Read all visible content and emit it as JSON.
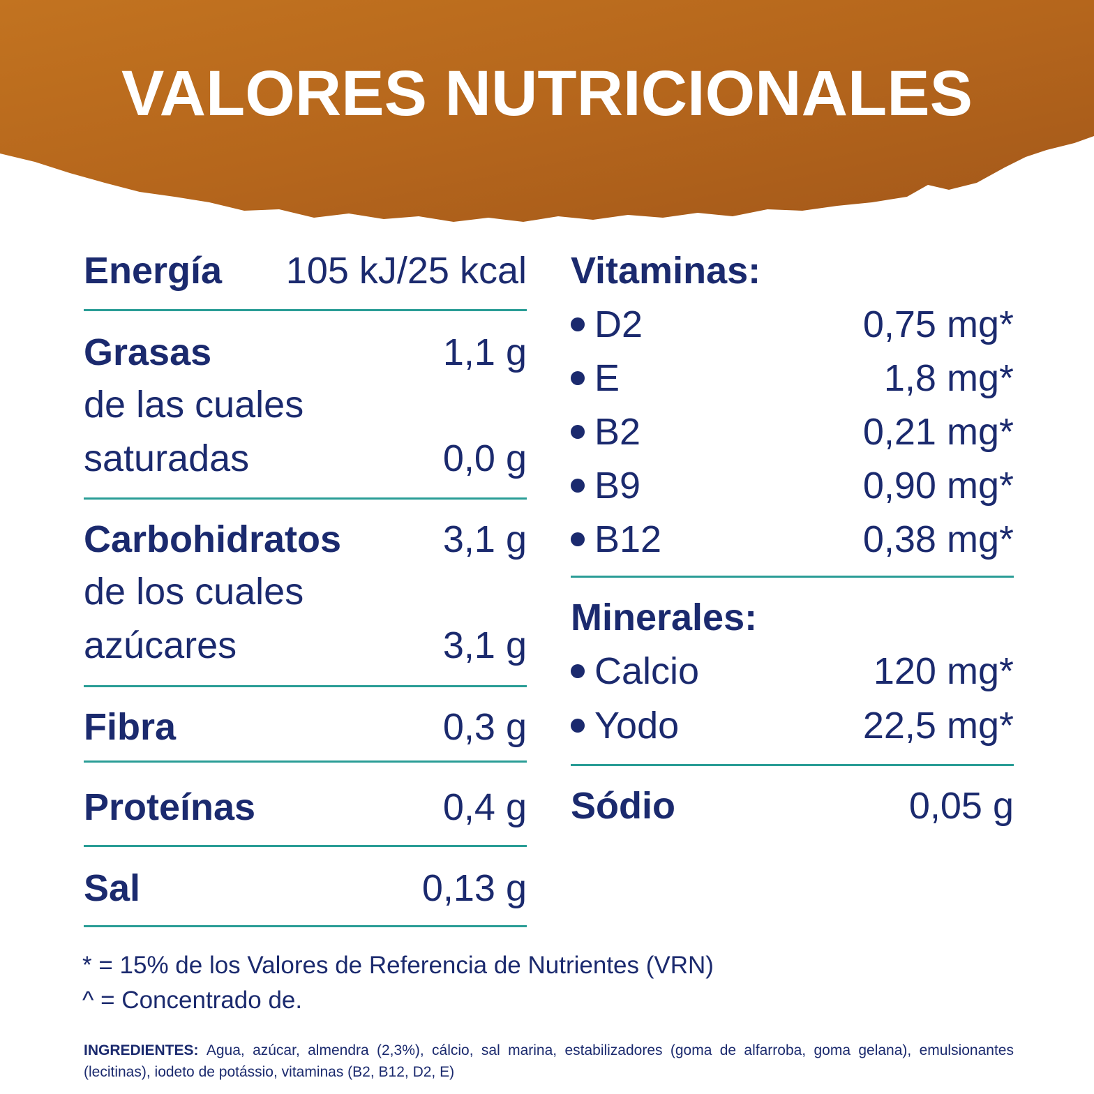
{
  "header": {
    "title": "VALORES NUTRICIONALES"
  },
  "left": [
    {
      "label": "Energía",
      "value": "105 kJ/25 kcal"
    },
    {
      "label": "Grasas",
      "value": "1,1 g",
      "sub_lines": [
        "de las cuales",
        "saturadas"
      ],
      "sub_value": "0,0 g"
    },
    {
      "label": "Carbohidratos",
      "value": "3,1 g",
      "sub_lines": [
        "de los cuales",
        "azúcares"
      ],
      "sub_value": "3,1 g"
    },
    {
      "label": "Fibra",
      "value": "0,3 g"
    },
    {
      "label": "Proteínas",
      "value": "0,4 g"
    },
    {
      "label": "Sal",
      "value": "0,13 g"
    }
  ],
  "vitamins": {
    "heading": "Vitaminas:",
    "items": [
      {
        "label": "D2",
        "value": "0,75 mg*"
      },
      {
        "label": "E",
        "value": "1,8 mg*"
      },
      {
        "label": "B2",
        "value": "0,21 mg*"
      },
      {
        "label": "B9",
        "value": "0,90 mg*"
      },
      {
        "label": "B12",
        "value": "0,38 mg*"
      }
    ]
  },
  "minerals": {
    "heading": "Minerales:",
    "items": [
      {
        "label": "Calcio",
        "value": "120 mg*"
      },
      {
        "label": "Yodo",
        "value": "22,5 mg*"
      }
    ]
  },
  "sodium": {
    "label": "Sódio",
    "value": "0,05 g"
  },
  "footnotes": [
    "* = 15% de los Valores de Referencia de Nutrientes (VRN)",
    "^ = Concentrado de."
  ],
  "ingredients": {
    "heading": "INGREDIENTES:",
    "text": "Agua, azúcar, almendra (2,3%), cálcio, sal marina, estabilizadores (goma de alfarroba, goma gelana), emulsionantes (lecitinas), iodeto de potássio, vitaminas (B2, B12, D2, E)"
  }
}
